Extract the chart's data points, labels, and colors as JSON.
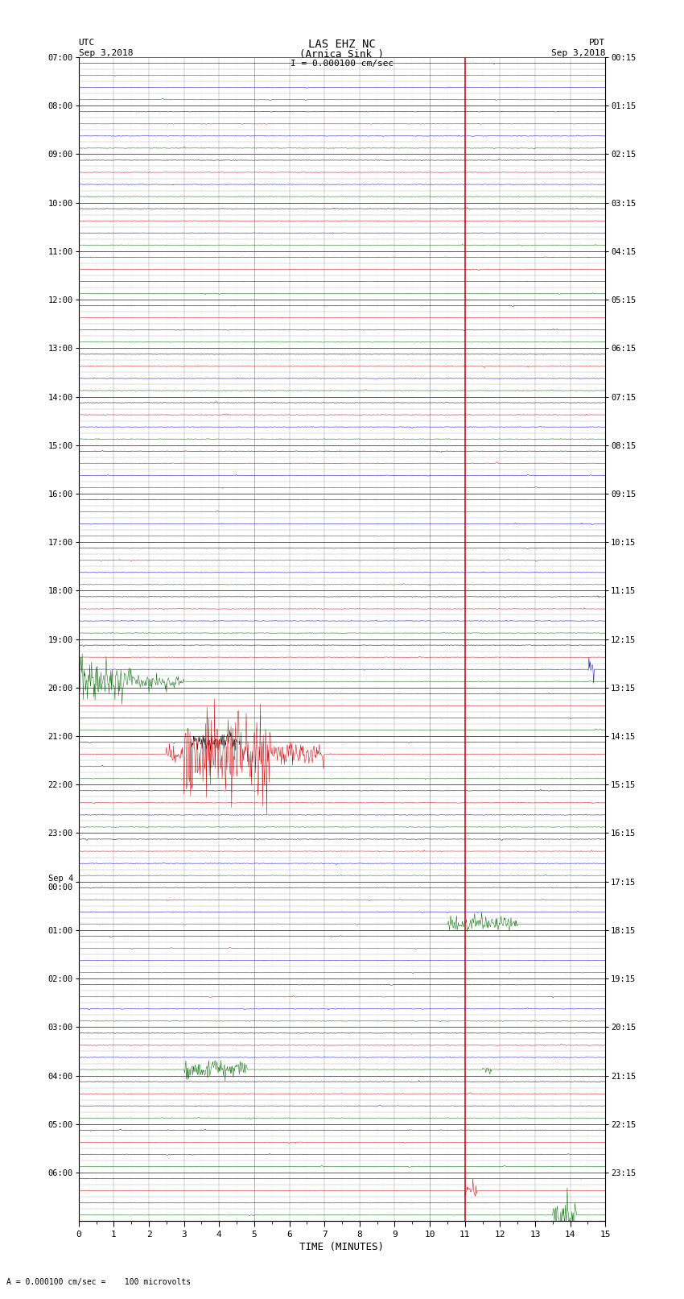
{
  "title_line1": "LAS EHZ NC",
  "title_line2": "(Arnica Sink )",
  "scale_text": "I = 0.000100 cm/sec",
  "left_label_top": "UTC",
  "left_label_date": "Sep 3,2018",
  "right_label_top": "PDT",
  "right_label_date": "Sep 3,2018",
  "bottom_label": "TIME (MINUTES)",
  "footnote": "A = 0.000100 cm/sec =    100 microvolts",
  "minutes_per_row": 15,
  "n_rows": 96,
  "bg_color": "#ffffff",
  "trace_colors": [
    "#000000",
    "#cc0000",
    "#0000cc",
    "#006600"
  ],
  "vline_color": "#cc0000",
  "vline_minute": 11.0,
  "left_tick_labels_utc": [
    "07:00",
    "",
    "",
    "",
    "08:00",
    "",
    "",
    "",
    "09:00",
    "",
    "",
    "",
    "10:00",
    "",
    "",
    "",
    "11:00",
    "",
    "",
    "",
    "12:00",
    "",
    "",
    "",
    "13:00",
    "",
    "",
    "",
    "14:00",
    "",
    "",
    "",
    "15:00",
    "",
    "",
    "",
    "16:00",
    "",
    "",
    "",
    "17:00",
    "",
    "",
    "",
    "18:00",
    "",
    "",
    "",
    "19:00",
    "",
    "",
    "",
    "20:00",
    "",
    "",
    "",
    "21:00",
    "",
    "",
    "",
    "22:00",
    "",
    "",
    "",
    "23:00",
    "",
    "",
    "",
    "Sep 4\n00:00",
    "",
    "",
    "",
    "01:00",
    "",
    "",
    "",
    "02:00",
    "",
    "",
    "",
    "03:00",
    "",
    "",
    "",
    "04:00",
    "",
    "",
    "",
    "05:00",
    "",
    "",
    "",
    "06:00",
    "",
    "",
    ""
  ],
  "right_tick_labels_pdt": [
    "00:15",
    "",
    "",
    "",
    "01:15",
    "",
    "",
    "",
    "02:15",
    "",
    "",
    "",
    "03:15",
    "",
    "",
    "",
    "04:15",
    "",
    "",
    "",
    "05:15",
    "",
    "",
    "",
    "06:15",
    "",
    "",
    "",
    "07:15",
    "",
    "",
    "",
    "08:15",
    "",
    "",
    "",
    "09:15",
    "",
    "",
    "",
    "10:15",
    "",
    "",
    "",
    "11:15",
    "",
    "",
    "",
    "12:15",
    "",
    "",
    "",
    "13:15",
    "",
    "",
    "",
    "14:15",
    "",
    "",
    "",
    "15:15",
    "",
    "",
    "",
    "16:15",
    "",
    "",
    "",
    "17:15",
    "",
    "",
    "",
    "18:15",
    "",
    "",
    "",
    "19:15",
    "",
    "",
    "",
    "20:15",
    "",
    "",
    "",
    "21:15",
    "",
    "",
    "",
    "22:15",
    "",
    "",
    "",
    "23:15",
    "",
    "",
    ""
  ],
  "xlabel_ticks": [
    0,
    1,
    2,
    3,
    4,
    5,
    6,
    7,
    8,
    9,
    10,
    11,
    12,
    13,
    14,
    15
  ],
  "event_green_large_row": 48,
  "event_red_large_row": 56,
  "event_green_small_row1": 68,
  "event_green_small_row2": 93,
  "event_red_small_row": 92,
  "event_blue_burst_row": 47
}
